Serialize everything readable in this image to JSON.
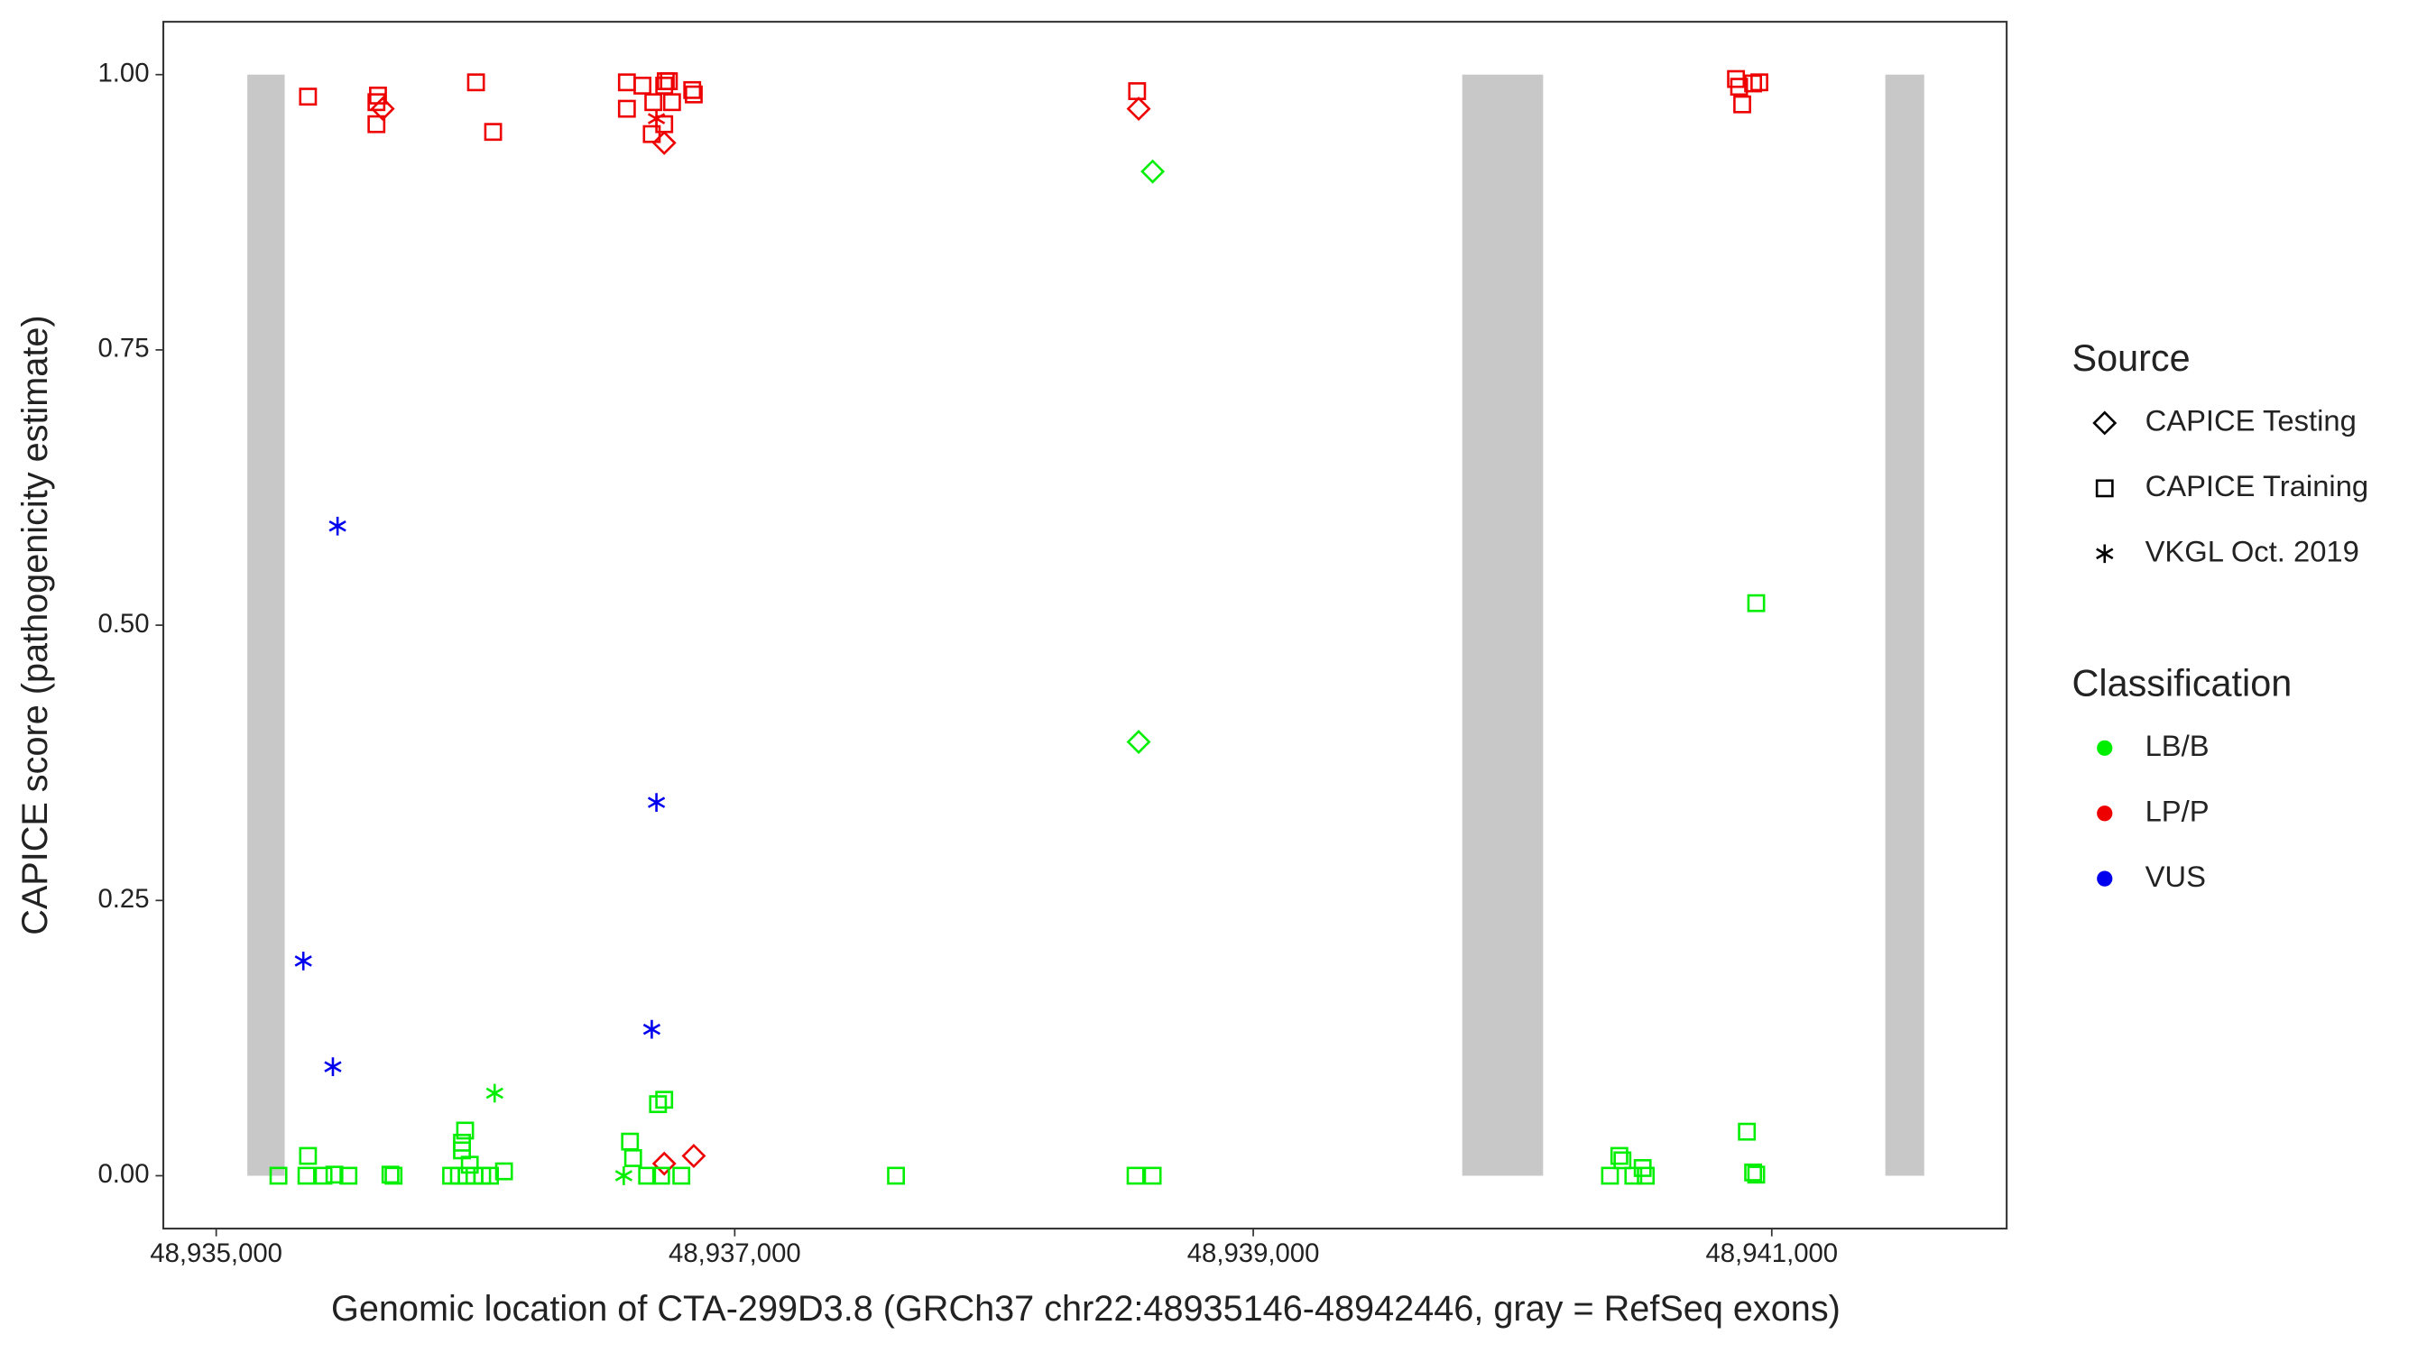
{
  "chart_data": {
    "type": "scatter",
    "x_label": "Genomic location of CTA-299D3.8 (GRCh37 chr22:48935146-48942446, gray = RefSeq exons)",
    "y_label": "CAPICE score (pathogenicity estimate)",
    "xlim": [
      48934796,
      48941906
    ],
    "ylim": [
      -0.048,
      1.048
    ],
    "xticks": [
      {
        "value": 48935000,
        "label": "48,935,000"
      },
      {
        "value": 48937000,
        "label": "48,937,000"
      },
      {
        "value": 48939000,
        "label": "48,939,000"
      },
      {
        "value": 48941000,
        "label": "48,941,000"
      }
    ],
    "yticks": [
      {
        "value": 0,
        "label": "0.00"
      },
      {
        "value": 0.25,
        "label": "0.25"
      },
      {
        "value": 0.5,
        "label": "0.50"
      },
      {
        "value": 0.75,
        "label": "0.75"
      },
      {
        "value": 1,
        "label": "1.00"
      }
    ],
    "exons": {
      "color": "#c8c8c8",
      "ranges": [
        [
          48935120,
          48935264
        ],
        [
          48939806,
          48940118
        ],
        [
          48941438,
          48941588
        ]
      ],
      "ylim": [
        0,
        1
      ]
    },
    "source_legend": {
      "title": "Source",
      "entries": [
        {
          "name": "CAPICE Testing",
          "shape": "diamond"
        },
        {
          "name": "CAPICE Training",
          "shape": "square"
        },
        {
          "name": "VKGL Oct. 2019",
          "shape": "asterisk"
        }
      ]
    },
    "class_legend": {
      "title": "Classification",
      "entries": [
        {
          "name": "LB/B",
          "color": "#00ee00"
        },
        {
          "name": "LP/P",
          "color": "#ee0000"
        },
        {
          "name": "VUS",
          "color": "#0000ee"
        }
      ]
    },
    "series": [
      {
        "source": 1,
        "classification": 1,
        "x": [
          48935354,
          48935624,
          48935618,
          48935618,
          48936002,
          48936068,
          48936584,
          48936584,
          48936644,
          48936680,
          48936686,
          48936728,
          48936734,
          48936746,
          48936728,
          48936758,
          48936836,
          48936842,
          48938552,
          48940862,
          48940874,
          48940886,
          48940928,
          48940952
        ],
        "values": [
          0.98,
          0.981,
          0.975,
          0.955,
          0.993,
          0.948,
          0.993,
          0.969,
          0.99,
          0.946,
          0.975,
          0.99,
          0.994,
          0.994,
          0.955,
          0.975,
          0.986,
          0.982,
          0.985,
          0.996,
          0.989,
          0.973,
          0.992,
          0.993
        ]
      },
      {
        "source": 0,
        "classification": 1,
        "x": [
          48935642,
          48936728,
          48938558,
          48936728,
          48936842
        ],
        "values": [
          0.969,
          0.938,
          0.969,
          0.011,
          0.018
        ]
      },
      {
        "source": 2,
        "classification": 1,
        "x": [
          48936698
        ],
        "values": [
          0.96
        ]
      },
      {
        "source": 0,
        "classification": 0,
        "x": [
          48938612,
          48938558
        ],
        "values": [
          0.912,
          0.394
        ]
      },
      {
        "source": 1,
        "classification": 0,
        "x": [
          48935240,
          48935348,
          48935354,
          48935414,
          48935456,
          48935510,
          48935672,
          48935684,
          48935906,
          48935936,
          48935948,
          48935948,
          48935960,
          48935966,
          48935978,
          48935996,
          48936026,
          48936056,
          48936110,
          48936596,
          48936608,
          48936704,
          48936728,
          48936662,
          48936716,
          48936794,
          48937622,
          48938546,
          48938612,
          48940412,
          48940424,
          48940502,
          48940376,
          48940466,
          48940514,
          48940904,
          48940940,
          48940928,
          48940940
        ],
        "values": [
          0,
          0,
          0.018,
          0,
          0.001,
          0,
          0.001,
          0,
          0,
          0,
          0.023,
          0.03,
          0.041,
          0,
          0.01,
          0,
          0,
          0,
          0.004,
          0.031,
          0.016,
          0.065,
          0.069,
          0,
          0,
          0,
          0,
          0,
          0,
          0.018,
          0.014,
          0.007,
          0,
          0,
          0,
          0.04,
          0.52,
          0.003,
          0.001
        ]
      },
      {
        "source": 2,
        "classification": 0,
        "x": [
          48936074,
          48936572
        ],
        "values": [
          0.075,
          0
        ]
      },
      {
        "source": 2,
        "classification": 2,
        "x": [
          48935468,
          48935336,
          48935450,
          48936698,
          48936680
        ],
        "values": [
          0.59,
          0.195,
          0.099,
          0.339,
          0.133
        ]
      }
    ]
  }
}
